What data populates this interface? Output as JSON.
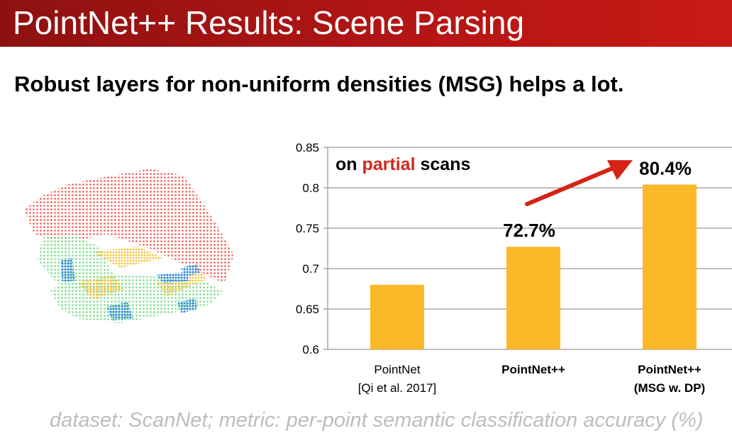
{
  "slide": {
    "title": "PointNet++ Results: Scene Parsing",
    "subtitle": "Robust layers for non-uniform densities (MSG) helps a lot.",
    "footnote": "dataset: ScanNet; metric: per-point semantic classification accuracy (%)"
  },
  "figure": {
    "description_icon": "scene-point-cloud-icon"
  },
  "chart_data": {
    "type": "bar",
    "categories": [
      [
        "PointNet",
        "[Qi et al. 2017]"
      ],
      [
        "PointNet++"
      ],
      [
        "PointNet++",
        "(MSG w. DP)"
      ]
    ],
    "category_bold": [
      false,
      true,
      true
    ],
    "values": [
      0.68,
      0.727,
      0.804
    ],
    "data_labels": [
      "",
      "72.7%",
      "80.4%"
    ],
    "ylim": [
      0.6,
      0.85
    ],
    "yticks": [
      0.6,
      0.65,
      0.7,
      0.75,
      0.8,
      0.85
    ],
    "ytick_labels": [
      "0.6",
      "0.65",
      "0.7",
      "0.75",
      "0.8",
      "0.85"
    ],
    "grid": true,
    "annotation": {
      "prefix": "on ",
      "highlight": "partial",
      "suffix": " scans"
    },
    "colors": {
      "bar": "#fbb829",
      "highlight": "#d0291f",
      "arrow": "#d42416",
      "grid": "#7f7f7f"
    }
  }
}
